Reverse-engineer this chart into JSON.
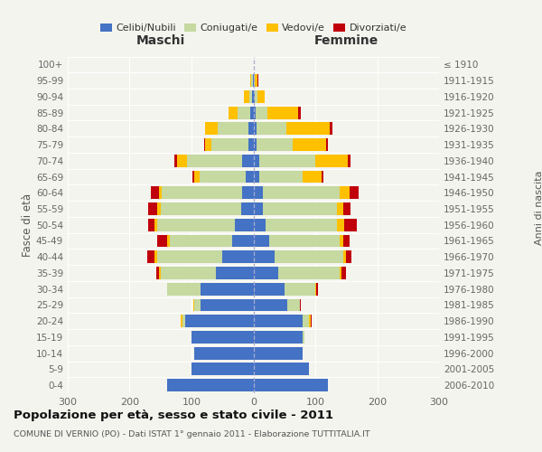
{
  "age_groups": [
    "0-4",
    "5-9",
    "10-14",
    "15-19",
    "20-24",
    "25-29",
    "30-34",
    "35-39",
    "40-44",
    "45-49",
    "50-54",
    "55-59",
    "60-64",
    "65-69",
    "70-74",
    "75-79",
    "80-84",
    "85-89",
    "90-94",
    "95-99",
    "100+"
  ],
  "birth_years": [
    "2006-2010",
    "2001-2005",
    "1996-2000",
    "1991-1995",
    "1986-1990",
    "1981-1985",
    "1976-1980",
    "1971-1975",
    "1966-1970",
    "1961-1965",
    "1956-1960",
    "1951-1955",
    "1946-1950",
    "1941-1945",
    "1936-1940",
    "1931-1935",
    "1926-1930",
    "1921-1925",
    "1916-1920",
    "1911-1915",
    "≤ 1910"
  ],
  "males": {
    "celibi": [
      140,
      100,
      95,
      100,
      110,
      85,
      85,
      60,
      50,
      35,
      30,
      20,
      18,
      12,
      18,
      8,
      8,
      5,
      2,
      1,
      0
    ],
    "coniugati": [
      0,
      0,
      0,
      0,
      5,
      10,
      55,
      90,
      105,
      100,
      125,
      130,
      130,
      75,
      90,
      60,
      50,
      20,
      5,
      2,
      0
    ],
    "vedovi": [
      0,
      0,
      0,
      0,
      2,
      2,
      0,
      2,
      5,
      5,
      5,
      5,
      5,
      8,
      15,
      10,
      20,
      15,
      8,
      2,
      0
    ],
    "divorziati": [
      0,
      0,
      0,
      0,
      0,
      0,
      0,
      5,
      12,
      15,
      10,
      15,
      12,
      3,
      5,
      2,
      0,
      0,
      0,
      0,
      0
    ]
  },
  "females": {
    "nubili": [
      120,
      90,
      80,
      80,
      80,
      55,
      50,
      40,
      35,
      25,
      20,
      15,
      15,
      10,
      10,
      5,
      5,
      4,
      2,
      0,
      0
    ],
    "coniugate": [
      0,
      0,
      0,
      2,
      10,
      20,
      50,
      100,
      110,
      115,
      115,
      120,
      125,
      70,
      90,
      58,
      48,
      18,
      4,
      2,
      0
    ],
    "vedove": [
      0,
      0,
      0,
      0,
      2,
      0,
      2,
      2,
      5,
      5,
      12,
      10,
      15,
      30,
      52,
      55,
      70,
      50,
      12,
      5,
      1
    ],
    "divorziate": [
      0,
      0,
      0,
      0,
      2,
      2,
      2,
      8,
      8,
      10,
      20,
      12,
      15,
      3,
      5,
      2,
      5,
      5,
      0,
      1,
      0
    ]
  },
  "colors": {
    "celibi": "#4472c4",
    "coniugati": "#c5d9a0",
    "vedovi": "#ffc000",
    "divorziati": "#c0000b"
  },
  "legend_labels": [
    "Celibi/Nubili",
    "Coniugati/e",
    "Vedovi/e",
    "Divorziati/e"
  ],
  "title": "Popolazione per età, sesso e stato civile - 2011",
  "subtitle": "COMUNE DI VERNIO (PO) - Dati ISTAT 1° gennaio 2011 - Elaborazione TUTTITALIA.IT",
  "maschi_label": "Maschi",
  "femmine_label": "Femmine",
  "ylabel_left": "Fasce di età",
  "ylabel_right": "Anni di nascita",
  "xlim": 300,
  "bg": "#f4f4ee"
}
